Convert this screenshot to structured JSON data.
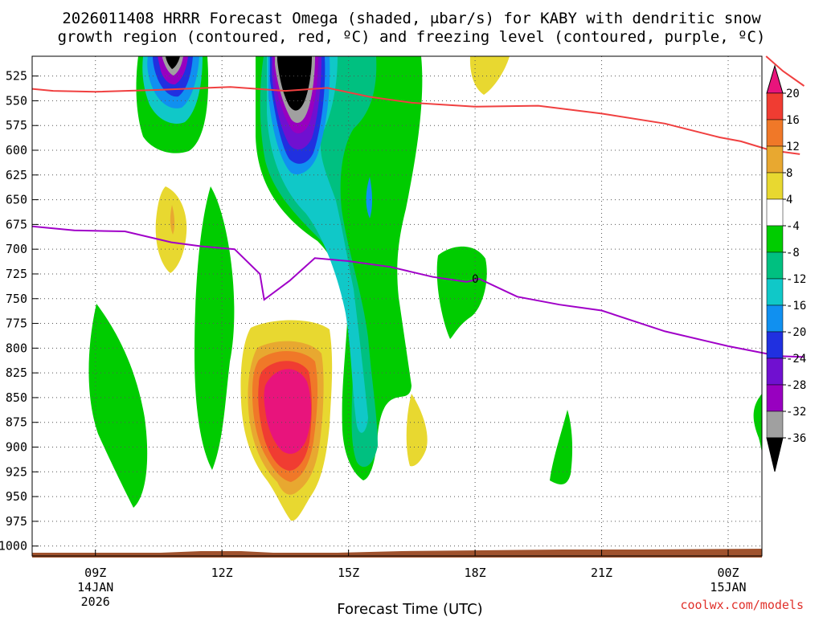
{
  "chart_data": {
    "type": "time-height contour",
    "title_line1": "2026011408 HRRR Forecast Omega (shaded, μbar/s) for KABY with dendritic snow",
    "title_line2": "growth region (contoured, red, ºC) and freezing level (contoured, purple, ºC)",
    "xlabel": "Forecast Time (UTC)",
    "credit": "coolwx.com/models",
    "x_range_hours_from_09Z": [
      -1.5,
      15.8
    ],
    "pressure_levels": [
      525,
      550,
      575,
      600,
      625,
      650,
      675,
      700,
      725,
      750,
      775,
      800,
      825,
      850,
      875,
      900,
      925,
      950,
      975,
      1000
    ],
    "ylim_hPa": [
      505,
      1010
    ],
    "x_ticks": [
      {
        "hour": 0,
        "label": "09Z",
        "sub1": "14JAN",
        "sub2": "2026"
      },
      {
        "hour": 3,
        "label": "12Z",
        "sub1": "",
        "sub2": ""
      },
      {
        "hour": 6,
        "label": "15Z",
        "sub1": "",
        "sub2": ""
      },
      {
        "hour": 9,
        "label": "18Z",
        "sub1": "",
        "sub2": ""
      },
      {
        "hour": 12,
        "label": "21Z",
        "sub1": "",
        "sub2": ""
      },
      {
        "hour": 15,
        "label": "00Z",
        "sub1": "15JAN",
        "sub2": ""
      }
    ],
    "colorbar": {
      "labels": [
        "20",
        "16",
        "12",
        "8",
        "4",
        "-4",
        "-8",
        "-12",
        "-16",
        "-20",
        "-24",
        "-28",
        "-32",
        "-36"
      ],
      "colors": [
        "#e8147c",
        "#f03c32",
        "#f07828",
        "#e8a830",
        "#e8d830",
        "#ffffff",
        "#00cc00",
        "#00c080",
        "#10c8c8",
        "#1090f0",
        "#2030e0",
        "#7010d0",
        "#9800c0",
        "#a0a0a0",
        "#000000"
      ]
    },
    "dendritic_line_red": {
      "name": "dendritic snow growth region (-12 C)",
      "color": "#f04040",
      "points": [
        [
          -1.5,
          538
        ],
        [
          -1,
          540
        ],
        [
          0,
          541
        ],
        [
          1.5,
          539
        ],
        [
          3.2,
          536
        ],
        [
          4.5,
          540
        ],
        [
          5.5,
          537
        ],
        [
          6.5,
          546
        ],
        [
          7.5,
          552
        ],
        [
          9,
          556
        ],
        [
          10.5,
          555
        ],
        [
          12,
          563
        ],
        [
          13.5,
          573
        ],
        [
          14.8,
          587
        ],
        [
          15.3,
          591
        ],
        [
          16,
          600
        ],
        [
          16.7,
          604
        ]
      ],
      "right_segment": [
        [
          15.9,
          505
        ],
        [
          16.3,
          520
        ],
        [
          16.8,
          535
        ]
      ]
    },
    "freezing_level_purple": {
      "name": "freezing level (0 C)",
      "color": "#a000c8",
      "label": "0",
      "points": [
        [
          -1.5,
          677
        ],
        [
          -0.5,
          681
        ],
        [
          0.7,
          682
        ],
        [
          1.8,
          693
        ],
        [
          2.5,
          697
        ],
        [
          3.3,
          700
        ],
        [
          3.9,
          725
        ],
        [
          4.0,
          751
        ],
        [
          4.6,
          732
        ],
        [
          5.2,
          709
        ],
        [
          6,
          712
        ],
        [
          7,
          718
        ],
        [
          8,
          728
        ],
        [
          8.8,
          733
        ],
        [
          9.1,
          730
        ],
        [
          10,
          748
        ],
        [
          11,
          756
        ],
        [
          12,
          762
        ],
        [
          13.5,
          783
        ],
        [
          15.0,
          798
        ],
        [
          16.2,
          808
        ],
        [
          16.8,
          809
        ]
      ]
    },
    "omega_regions": [
      {
        "level": -4,
        "kind": "ascent",
        "color": "#00cc00",
        "where": "09-11Z columns, 12Z 600-900 hPa, 14-17Z 505-900 hPa, 18Z 660-760 hPa, 21Z 820-905 hPa"
      },
      {
        "level": -12,
        "kind": "ascent",
        "color": "#10c8c8",
        "where": "14-16Z 540-880 hPa"
      },
      {
        "level": -28,
        "kind": "ascent",
        "color": "#9800c0",
        "where": "11Z and 14Z near 505-575 hPa"
      },
      {
        "level": -36,
        "kind": "ascent",
        "color": "#000000",
        "where": "14Z 505-545 hPa"
      },
      {
        "level": 4,
        "kind": "descent",
        "color": "#e8d830",
        "where": "13-15Z 735-960 hPa, 11Z 610-690 hPa, 17Z 810-900 hPa, 19Z 505-530 hPa"
      },
      {
        "level": 20,
        "kind": "descent",
        "color": "#e8147c",
        "where": "14Z 780-860 hPa"
      }
    ]
  }
}
